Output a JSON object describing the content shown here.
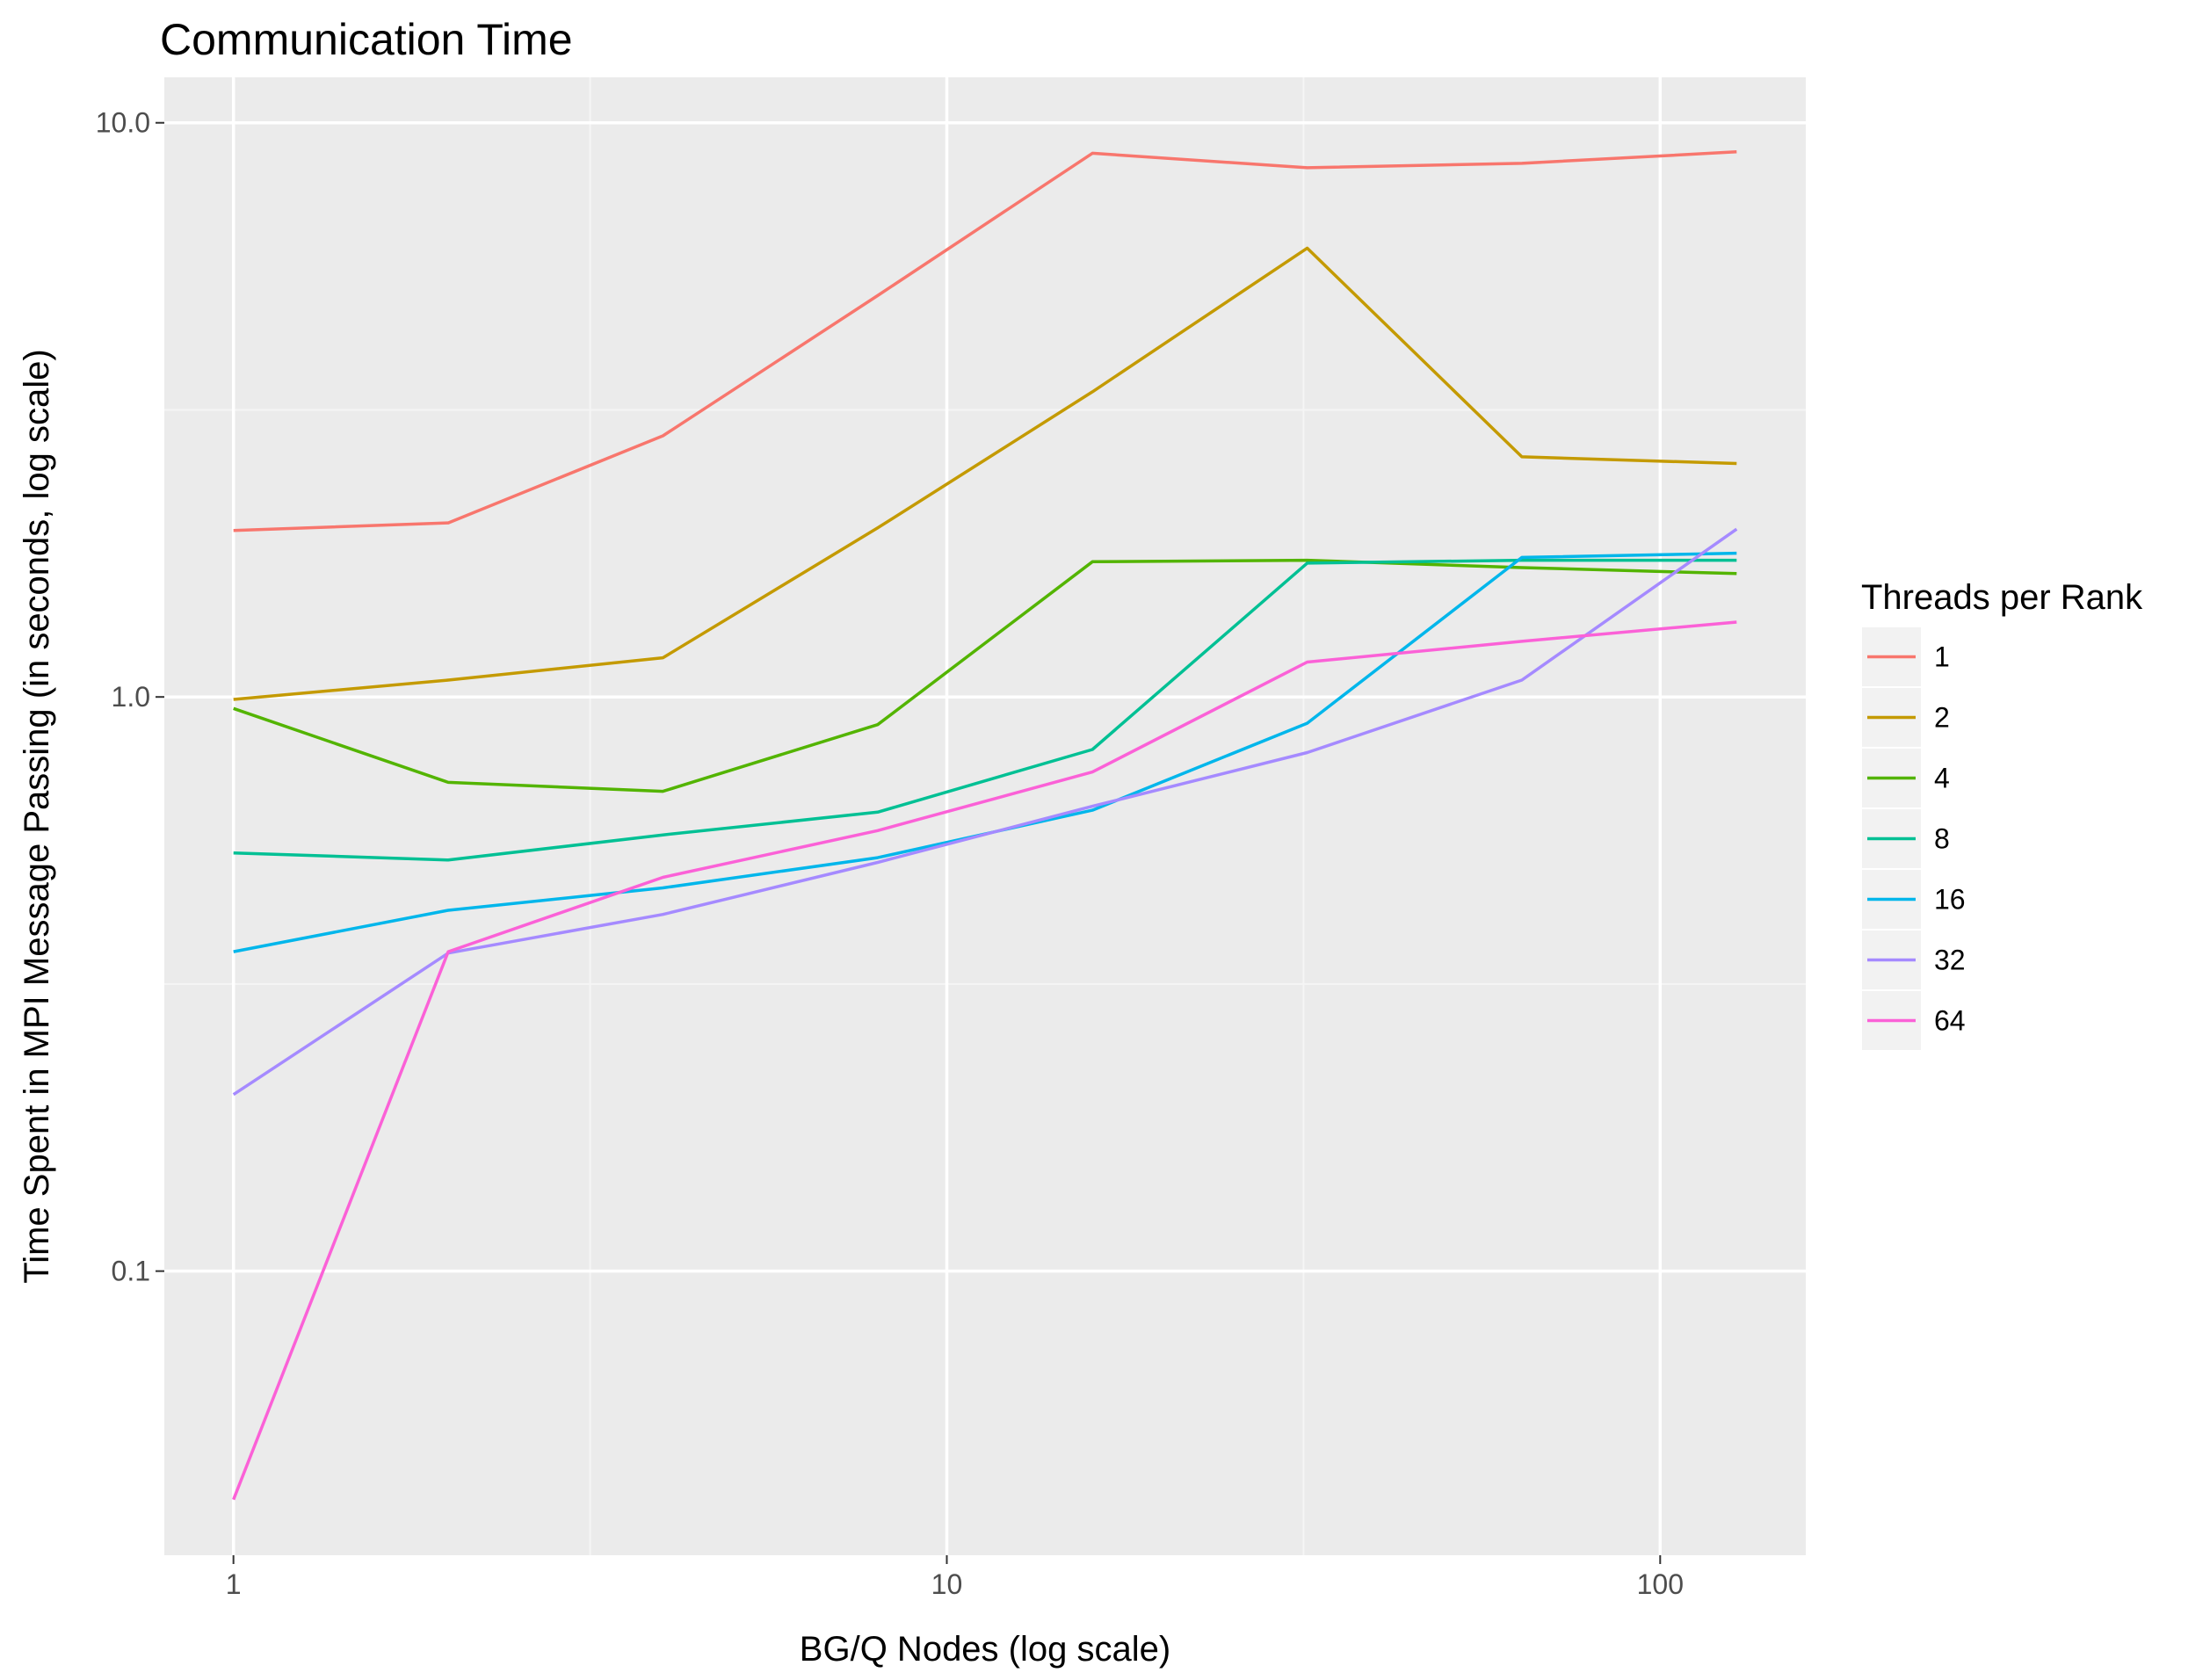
{
  "chart_data": {
    "type": "line",
    "title": "Communication Time",
    "xlabel": "BG/Q Nodes (log scale)",
    "ylabel": "Time Spent in MPI Message Passing (in seconds, log scale)",
    "x_scale": "log",
    "y_scale": "log",
    "xlim": [
      0.8,
      160
    ],
    "ylim": [
      0.032,
      12
    ],
    "x_ticks": [
      {
        "value": 1,
        "label": "1"
      },
      {
        "value": 10,
        "label": "10"
      },
      {
        "value": 100,
        "label": "100"
      }
    ],
    "y_ticks": [
      {
        "value": 0.1,
        "label": "0.1"
      },
      {
        "value": 1,
        "label": "1.0"
      },
      {
        "value": 10,
        "label": "10.0"
      }
    ],
    "grid": true,
    "legend": {
      "title": "Threads per Rank",
      "position": "right"
    },
    "x": [
      1,
      2,
      4,
      8,
      16,
      32,
      64,
      128
    ],
    "series": [
      {
        "name": "1",
        "color": "#F8766D",
        "values": [
          1.95,
          2.01,
          2.85,
          5.0,
          8.85,
          8.35,
          8.5,
          8.9
        ]
      },
      {
        "name": "2",
        "color": "#C49A00",
        "values": [
          0.99,
          1.07,
          1.17,
          1.97,
          3.4,
          6.05,
          2.62,
          2.55
        ]
      },
      {
        "name": "4",
        "color": "#53B400",
        "values": [
          0.955,
          0.71,
          0.685,
          0.895,
          1.72,
          1.73,
          1.68,
          1.64
        ]
      },
      {
        "name": "8",
        "color": "#00C094",
        "values": [
          0.535,
          0.52,
          0.575,
          0.63,
          0.81,
          1.71,
          1.73,
          1.73
        ]
      },
      {
        "name": "16",
        "color": "#00B6EB",
        "values": [
          0.36,
          0.425,
          0.465,
          0.525,
          0.635,
          0.9,
          1.75,
          1.78
        ]
      },
      {
        "name": "32",
        "color": "#A58AFF",
        "values": [
          0.203,
          0.358,
          0.418,
          0.515,
          0.645,
          0.8,
          1.07,
          1.96
        ]
      },
      {
        "name": "64",
        "color": "#FB61D7",
        "values": [
          0.04,
          0.36,
          0.485,
          0.585,
          0.74,
          1.15,
          1.25,
          1.35
        ]
      }
    ]
  },
  "style": {
    "panel_background": "#EBEBEB",
    "grid_major": "#FFFFFF",
    "grid_minor": "#F5F5F5",
    "legend_key_background": "#F2F2F2"
  }
}
